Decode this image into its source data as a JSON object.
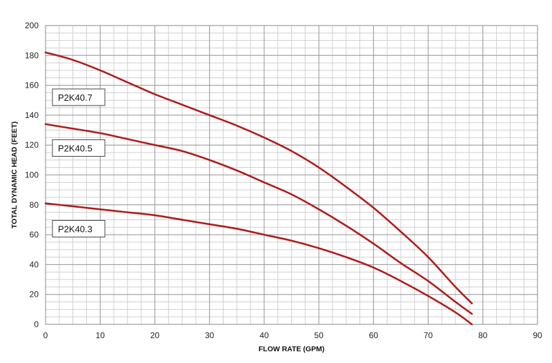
{
  "chart_data": {
    "type": "line",
    "xlabel": "FLOW RATE (GPM)",
    "ylabel": "TOTAL DYNAMIC HEAD (FEET)",
    "xlim": [
      0,
      90
    ],
    "ylim": [
      0,
      200
    ],
    "x_ticks": [
      0,
      10,
      20,
      30,
      40,
      50,
      60,
      70,
      80,
      90
    ],
    "y_ticks": [
      0,
      20,
      40,
      60,
      80,
      100,
      120,
      140,
      160,
      180,
      200
    ],
    "x_minor_step": 2.5,
    "y_minor_step": 5,
    "grid": true,
    "line_color": "#b01c1c",
    "series": [
      {
        "name": "P2K40.7",
        "x": [
          0,
          5,
          10,
          15,
          20,
          25,
          30,
          35,
          40,
          45,
          50,
          55,
          60,
          65,
          70,
          75,
          78
        ],
        "y": [
          182,
          177,
          170,
          162,
          154,
          147,
          140,
          133,
          125,
          116,
          105,
          92,
          78,
          62,
          45,
          25,
          14
        ]
      },
      {
        "name": "P2K40.5",
        "x": [
          0,
          5,
          10,
          15,
          20,
          25,
          30,
          35,
          40,
          45,
          50,
          55,
          60,
          65,
          70,
          75,
          78
        ],
        "y": [
          134,
          131,
          128,
          124,
          120,
          116,
          110,
          103,
          95,
          87,
          77,
          66,
          54,
          41,
          29,
          15,
          7
        ]
      },
      {
        "name": "P2K40.3",
        "x": [
          0,
          5,
          10,
          15,
          20,
          25,
          30,
          35,
          40,
          45,
          50,
          55,
          60,
          65,
          70,
          75,
          78
        ],
        "y": [
          81,
          79,
          77,
          75,
          73,
          70,
          67,
          64,
          60,
          56,
          51,
          45,
          38,
          29,
          19,
          8,
          0
        ]
      }
    ]
  }
}
